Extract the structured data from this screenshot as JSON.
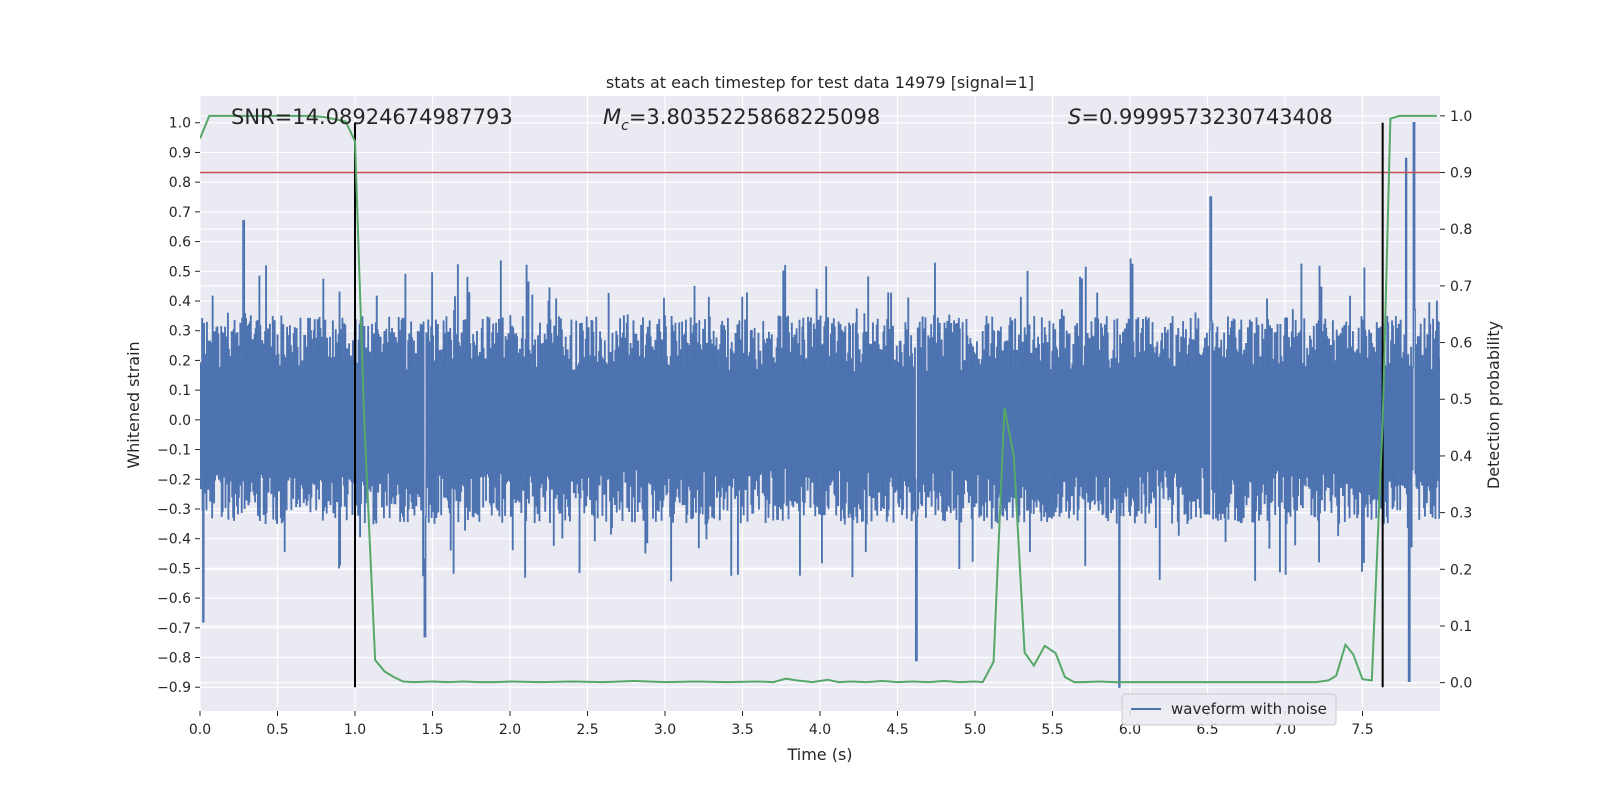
{
  "chart_data": {
    "type": "line",
    "title": "stats at each timestep for test data 14979 [signal=1]",
    "xlabel": "Time (s)",
    "ylabel": "Whitened strain",
    "y2label": "Detection probability",
    "xlim": [
      0,
      8
    ],
    "ylim": [
      -0.98,
      1.09
    ],
    "y2lim": [
      -0.05,
      1.035
    ],
    "xticks": [
      0.0,
      0.5,
      1.0,
      1.5,
      2.0,
      2.5,
      3.0,
      3.5,
      4.0,
      4.5,
      5.0,
      5.5,
      6.0,
      6.5,
      7.0,
      7.5
    ],
    "xtick_labels": [
      "0.0",
      "0.5",
      "1.0",
      "1.5",
      "2.0",
      "2.5",
      "3.0",
      "3.5",
      "4.0",
      "4.5",
      "5.0",
      "5.5",
      "6.0",
      "6.5",
      "7.0",
      "7.5"
    ],
    "yticks": [
      1.0,
      0.9,
      0.8,
      0.7,
      0.6,
      0.5,
      0.4,
      0.3,
      0.2,
      0.1,
      0.0,
      -0.1,
      -0.2,
      -0.3,
      -0.4,
      -0.5,
      -0.6,
      -0.7,
      -0.8,
      -0.9
    ],
    "ytick_labels": [
      "1.0",
      "0.9",
      "0.8",
      "0.7",
      "0.6",
      "0.5",
      "0.4",
      "0.3",
      "0.2",
      "0.1",
      "0.0",
      "−0.1",
      "−0.2",
      "−0.3",
      "−0.4",
      "−0.5",
      "−0.6",
      "−0.7",
      "−0.8",
      "−0.9"
    ],
    "y2ticks": [
      1.0,
      0.9,
      0.8,
      0.7,
      0.6,
      0.5,
      0.4,
      0.3,
      0.2,
      0.1,
      0.0
    ],
    "y2tick_labels": [
      "1.0",
      "0.9",
      "0.8",
      "0.7",
      "0.6",
      "0.5",
      "0.4",
      "0.3",
      "0.2",
      "0.1",
      "0.0"
    ],
    "grid": true,
    "annotations": {
      "snr": "SNR=14.08924674987793",
      "mc_symbol": "M",
      "mc_sub": "c",
      "mc_value": "=3.8035225868225098",
      "s_symbol": "S",
      "s_value": "=0.9999573230743408"
    },
    "legend": {
      "position": "lower-right",
      "entries": [
        "waveform with noise"
      ]
    },
    "colors": {
      "waveform": "#4c72b0",
      "probability": "#55a868",
      "threshold": "#c44e52",
      "markers": "#000000",
      "background": "#eaeaf2",
      "grid": "#ffffff"
    },
    "threshold_y2": 0.9,
    "vertical_markers": {
      "x": [
        1.0,
        7.63
      ],
      "y_range": [
        -0.9,
        1.0
      ]
    },
    "waveform_envelope": {
      "description": "dense noisy whitened strain, typical amplitude",
      "x_range": [
        0,
        8
      ],
      "typical_upper": 0.35,
      "typical_lower": -0.35,
      "notable_peaks": [
        {
          "x": 0.02,
          "y": -0.68
        },
        {
          "x": 0.28,
          "y": 0.67
        },
        {
          "x": 1.45,
          "y": -0.73
        },
        {
          "x": 4.62,
          "y": -0.81
        },
        {
          "x": 5.93,
          "y": -0.9
        },
        {
          "x": 6.52,
          "y": 0.75
        },
        {
          "x": 7.78,
          "y": 0.88
        },
        {
          "x": 7.83,
          "y": 1.0
        },
        {
          "x": 7.8,
          "y": -0.88
        }
      ]
    },
    "series": [
      {
        "name": "detection probability",
        "axis": "y2",
        "x": [
          0.0,
          0.06,
          0.12,
          0.2,
          0.3,
          0.4,
          0.5,
          0.6,
          0.7,
          0.8,
          0.94,
          1.0,
          1.06,
          1.13,
          1.19,
          1.25,
          1.31,
          1.38,
          1.5,
          1.6,
          1.7,
          1.8,
          1.9,
          2.0,
          2.2,
          2.4,
          2.6,
          2.8,
          3.0,
          3.2,
          3.4,
          3.6,
          3.7,
          3.78,
          3.85,
          3.95,
          4.05,
          4.12,
          4.2,
          4.3,
          4.4,
          4.5,
          4.6,
          4.7,
          4.8,
          4.9,
          5.0,
          5.05,
          5.12,
          5.19,
          5.25,
          5.32,
          5.38,
          5.45,
          5.52,
          5.58,
          5.64,
          5.7,
          5.8,
          5.9,
          6.0,
          6.2,
          6.4,
          6.6,
          6.8,
          7.0,
          7.2,
          7.28,
          7.33,
          7.39,
          7.44,
          7.5,
          7.56,
          7.63,
          7.68,
          7.74,
          7.8,
          7.9,
          7.98
        ],
        "values": [
          0.96,
          1.0,
          1.0,
          1.0,
          1.0,
          1.0,
          1.0,
          1.0,
          1.0,
          0.998,
          0.99,
          0.955,
          0.46,
          0.04,
          0.02,
          0.01,
          0.002,
          0.001,
          0.002,
          0.001,
          0.002,
          0.001,
          0.001,
          0.002,
          0.001,
          0.002,
          0.001,
          0.003,
          0.001,
          0.002,
          0.001,
          0.002,
          0.001,
          0.007,
          0.004,
          0.001,
          0.005,
          0.001,
          0.002,
          0.001,
          0.003,
          0.001,
          0.002,
          0.001,
          0.003,
          0.001,
          0.002,
          0.001,
          0.037,
          0.485,
          0.4,
          0.053,
          0.03,
          0.065,
          0.052,
          0.01,
          0.001,
          0.001,
          0.002,
          0.001,
          0.001,
          0.001,
          0.001,
          0.001,
          0.001,
          0.001,
          0.001,
          0.004,
          0.012,
          0.067,
          0.05,
          0.006,
          0.004,
          0.46,
          0.995,
          1.0,
          1.0,
          1.0,
          1.0
        ]
      }
    ]
  }
}
